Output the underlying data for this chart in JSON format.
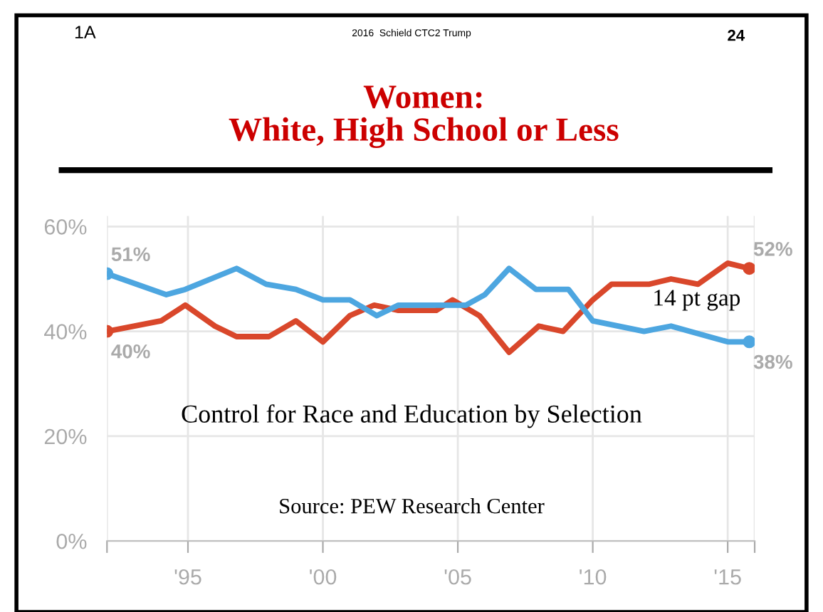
{
  "chart_data": {
    "type": "line",
    "title": "Women:\nWhite, High School or Less",
    "annotations": [
      "1A",
      "2016  Schield CTC2 Trump",
      "24",
      "Control for Race and Education by Selection",
      "Source: PEW Research Center",
      "14 pt gap"
    ],
    "series": [
      {
        "color": "#d9472b",
        "x": [
          1992,
          1994,
          1994.9,
          1996,
          1996.8,
          1998,
          1999,
          2000,
          2001,
          2001.9,
          2002.8,
          2004.2,
          2004.8,
          2005.8,
          2006.9,
          2008,
          2008.9,
          2010,
          2010.7,
          2012.1,
          2012.9,
          2013.9,
          2015,
          2015.8
        ],
        "values": [
          40,
          42,
          45,
          41,
          39,
          39,
          42,
          38,
          43,
          45,
          44,
          44,
          46,
          43,
          36,
          41,
          40,
          46,
          49,
          49,
          50,
          49,
          53,
          52
        ],
        "value_labels": [
          "40%",
          null,
          null,
          null,
          null,
          null,
          null,
          null,
          null,
          null,
          null,
          null,
          null,
          null,
          null,
          null,
          null,
          null,
          null,
          null,
          null,
          null,
          null,
          "52%"
        ]
      },
      {
        "color": "#4da6e0",
        "x": [
          1992,
          1994.2,
          1994.9,
          1996.8,
          1997.9,
          1999,
          2000,
          2001,
          2002,
          2002.8,
          2004.2,
          2005.3,
          2006,
          2006.9,
          2007.9,
          2009.1,
          2010,
          2011.9,
          2012.9,
          2015,
          2015.8
        ],
        "values": [
          51,
          47,
          48,
          52,
          49,
          48,
          46,
          46,
          43,
          45,
          45,
          45,
          47,
          52,
          48,
          48,
          42,
          40,
          41,
          38,
          38
        ],
        "value_labels": [
          "51%",
          null,
          null,
          null,
          null,
          null,
          null,
          null,
          null,
          null,
          null,
          null,
          null,
          null,
          null,
          null,
          null,
          null,
          null,
          null,
          "38%"
        ]
      }
    ],
    "xlim": [
      1992,
      2016
    ],
    "xticks": [
      {
        "value": 1992,
        "label": null
      },
      {
        "value": 1995,
        "label": "'95"
      },
      {
        "value": 2000,
        "label": "'00"
      },
      {
        "value": 2005,
        "label": "'05"
      },
      {
        "value": 2010,
        "label": "'10"
      },
      {
        "value": 2015,
        "label": "'15"
      },
      {
        "value": 2016,
        "label": null
      }
    ],
    "ylim": [
      0,
      62
    ],
    "yticks": [
      {
        "value": 0,
        "label": "0%"
      },
      {
        "value": 20,
        "label": "20%"
      },
      {
        "value": 40,
        "label": "40%"
      },
      {
        "value": 60,
        "label": "60%"
      }
    ],
    "grid": true,
    "marker": "none",
    "line_style": "solid",
    "legend": false
  }
}
